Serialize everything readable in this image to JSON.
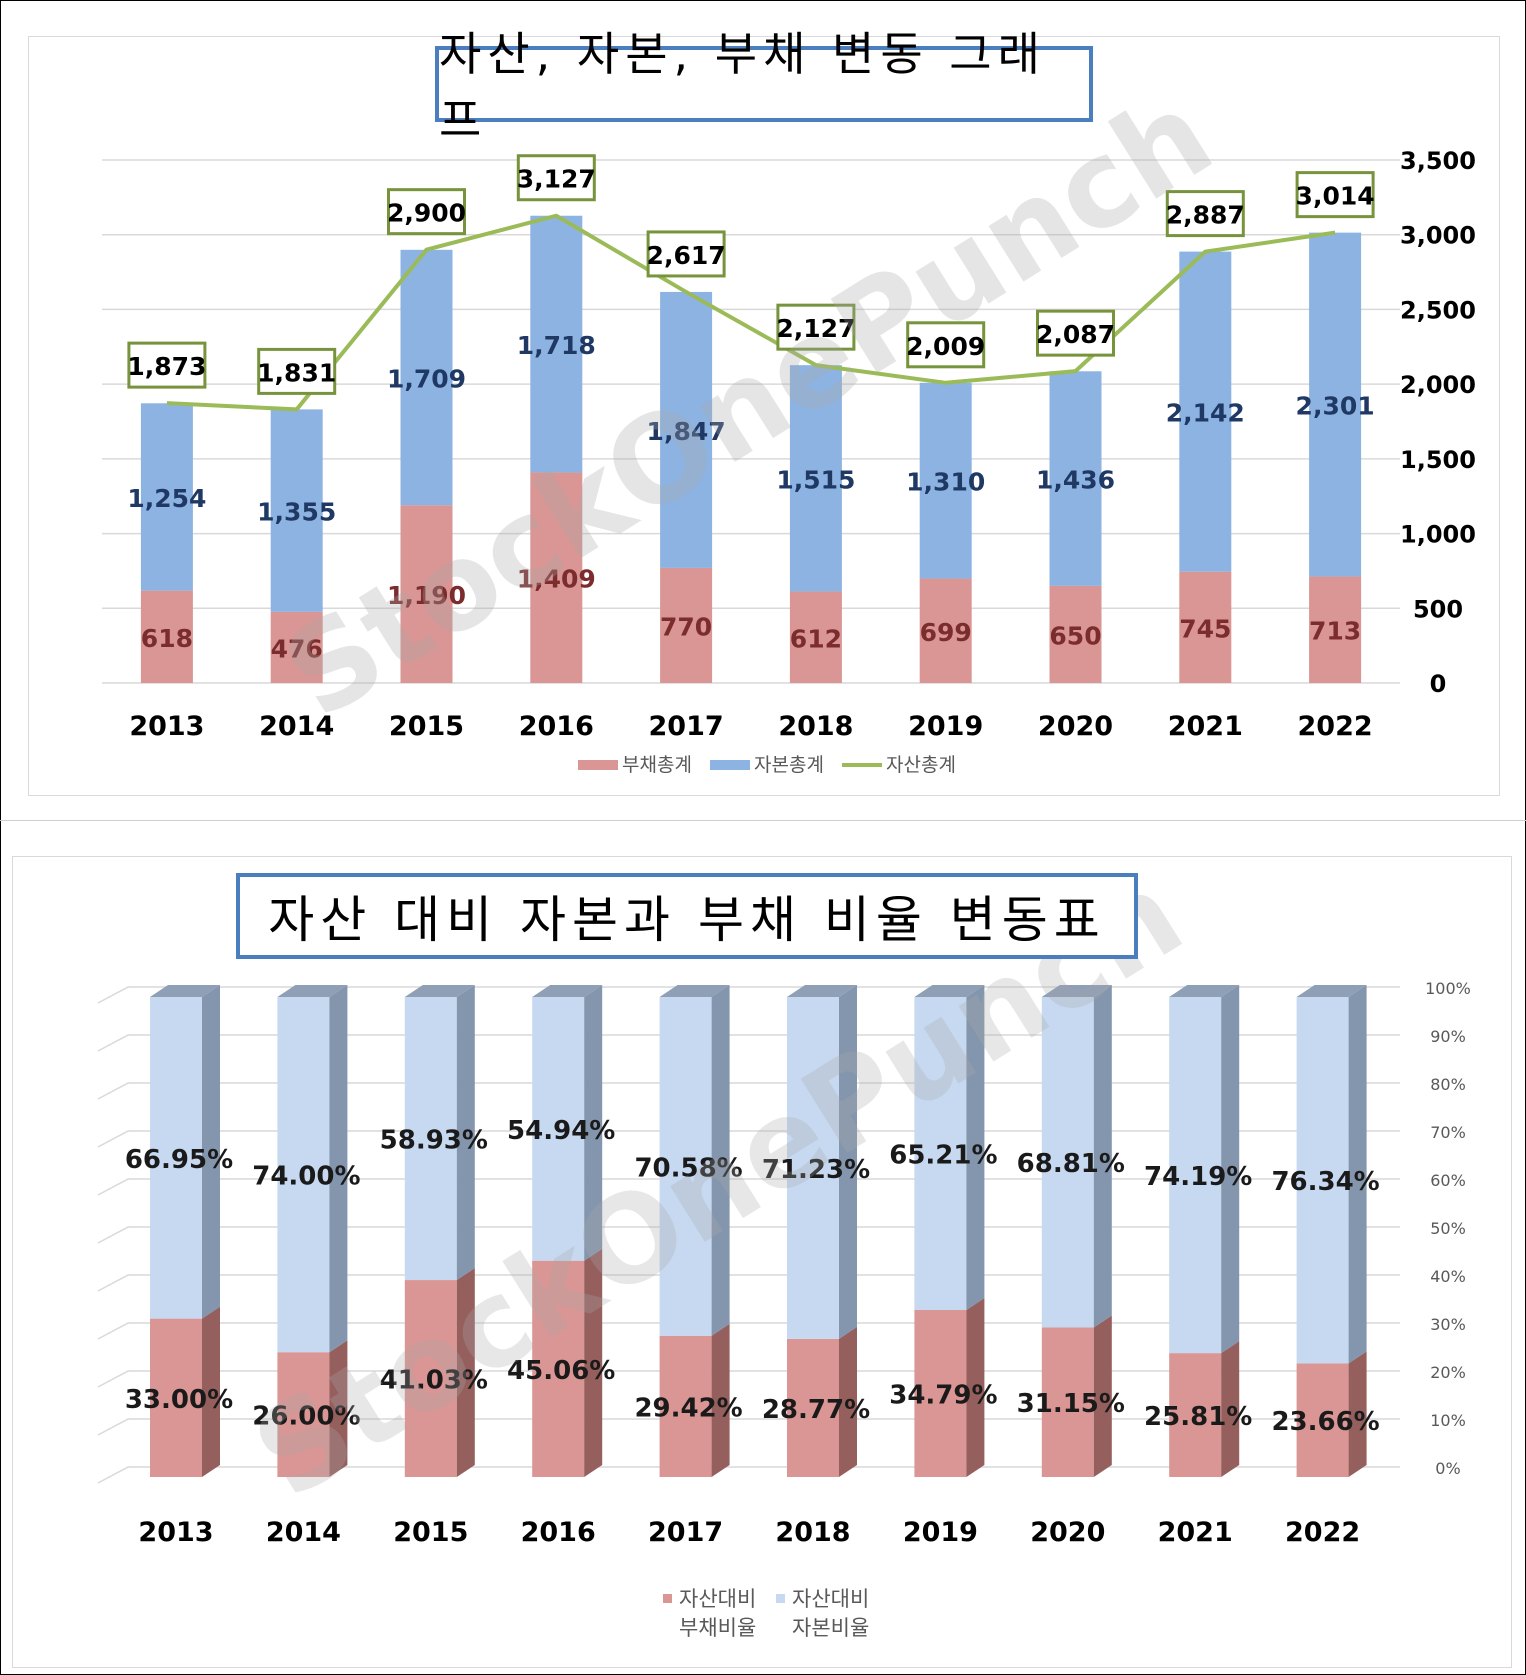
{
  "chart_data": [
    {
      "type": "bar",
      "title": "자산, 자본, 부채 변동 그래프",
      "categories": [
        "2013",
        "2014",
        "2015",
        "2016",
        "2017",
        "2018",
        "2019",
        "2020",
        "2021",
        "2022"
      ],
      "series": [
        {
          "name": "부채총계",
          "kind": "stacked-bar",
          "color": "#da9694",
          "label_color": "#7b2c2c",
          "values": [
            618,
            476,
            1190,
            1409,
            770,
            612,
            699,
            650,
            745,
            713
          ],
          "labels": [
            "618",
            "476",
            "1,190",
            "1,409",
            "770",
            "612",
            "699",
            "650",
            "745",
            "713"
          ]
        },
        {
          "name": "자본총계",
          "kind": "stacked-bar",
          "color": "#8db3e2",
          "label_color": "#1f3864",
          "values": [
            1254,
            1355,
            1709,
            1718,
            1847,
            1515,
            1310,
            1436,
            2142,
            2301
          ],
          "labels": [
            "1,254",
            "1,355",
            "1,709",
            "1,718",
            "1,847",
            "1,515",
            "1,310",
            "1,436",
            "2,142",
            "2,301"
          ]
        },
        {
          "name": "자산총계",
          "kind": "line",
          "color": "#9bbb59",
          "values": [
            1873,
            1831,
            2900,
            3127,
            2617,
            2127,
            2009,
            2087,
            2887,
            3014
          ],
          "labels": [
            "1,873",
            "1,831",
            "2,900",
            "3,127",
            "2,617",
            "2,127",
            "2,009",
            "2,087",
            "2,887",
            "3,014"
          ]
        }
      ],
      "ylim": [
        0,
        3500
      ],
      "y_ticks": [
        "0",
        "500",
        "1,000",
        "1,500",
        "2,000",
        "2,500",
        "3,000",
        "3,500"
      ],
      "y_axis_side": "right",
      "grid": true,
      "legend": "bottom"
    },
    {
      "type": "bar",
      "title": "자산 대비 자본과 부채 비율 변동표",
      "categories": [
        "2013",
        "2014",
        "2015",
        "2016",
        "2017",
        "2018",
        "2019",
        "2020",
        "2021",
        "2022"
      ],
      "series": [
        {
          "name": "자산대비 부채비율",
          "legend_lines": [
            "자산대비",
            "부채비율"
          ],
          "color": "#da9694",
          "values": [
            33.0,
            26.0,
            41.03,
            45.06,
            29.42,
            28.77,
            34.79,
            31.15,
            25.81,
            23.66
          ],
          "labels": [
            "33.00%",
            "26.00%",
            "41.03%",
            "45.06%",
            "29.42%",
            "28.77%",
            "34.79%",
            "31.15%",
            "25.81%",
            "23.66%"
          ]
        },
        {
          "name": "자산대비 자본비율",
          "legend_lines": [
            "자산대비",
            "자본비율"
          ],
          "color": "#c6d9f1",
          "values": [
            66.95,
            74.0,
            58.93,
            54.94,
            70.58,
            71.23,
            65.21,
            68.81,
            74.19,
            76.34
          ],
          "labels": [
            "66.95%",
            "74.00%",
            "58.93%",
            "54.94%",
            "70.58%",
            "71.23%",
            "65.21%",
            "68.81%",
            "74.19%",
            "76.34%"
          ]
        }
      ],
      "ylim": [
        0,
        100
      ],
      "y_ticks": [
        "0%",
        "10%",
        "20%",
        "30%",
        "40%",
        "50%",
        "60%",
        "70%",
        "80%",
        "90%",
        "100%"
      ],
      "y_axis_side": "right",
      "grid": true,
      "style": "3d-stacked-100",
      "legend": "bottom"
    }
  ],
  "watermark": "StockOnePunch"
}
